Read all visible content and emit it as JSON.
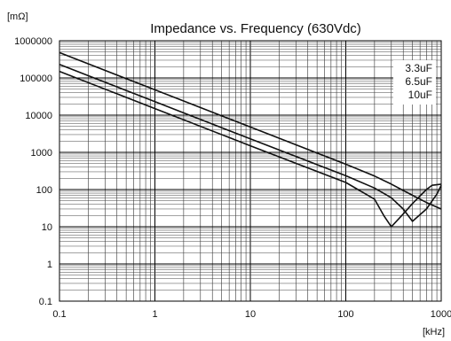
{
  "chart_data": {
    "type": "line",
    "title": "Impedance vs. Frequency (630Vdc)",
    "ylabel": "[mΩ]",
    "xlabel": "[kHz]",
    "x_scale": "log",
    "y_scale": "log",
    "xlim": [
      0.1,
      1000
    ],
    "ylim": [
      0.1,
      1000000
    ],
    "x_ticks": [
      "0.1",
      "1",
      "10",
      "100",
      "1000"
    ],
    "y_ticks": [
      "1000000",
      "100000",
      "10000",
      "1000",
      "100",
      "10",
      "1",
      "0.1"
    ],
    "grid": true,
    "legend_position": "top-right",
    "series": [
      {
        "name": "3.3uF",
        "x": [
          0.1,
          1,
          10,
          100,
          200,
          300,
          500,
          700,
          1000
        ],
        "y": [
          480000,
          48000,
          4800,
          480,
          230,
          140,
          70,
          45,
          30
        ]
      },
      {
        "name": "6.5uF",
        "x": [
          0.1,
          1,
          10,
          100,
          200,
          300,
          400,
          500,
          700,
          900,
          1000
        ],
        "y": [
          230000,
          23000,
          2300,
          235,
          110,
          60,
          30,
          14,
          30,
          75,
          130
        ]
      },
      {
        "name": "10uF",
        "x": [
          0.1,
          1,
          10,
          100,
          200,
          250,
          300,
          400,
          500,
          700,
          800,
          1000
        ],
        "y": [
          150000,
          15000,
          1500,
          155,
          55,
          20,
          10,
          22,
          42,
          100,
          130,
          140
        ]
      }
    ]
  }
}
